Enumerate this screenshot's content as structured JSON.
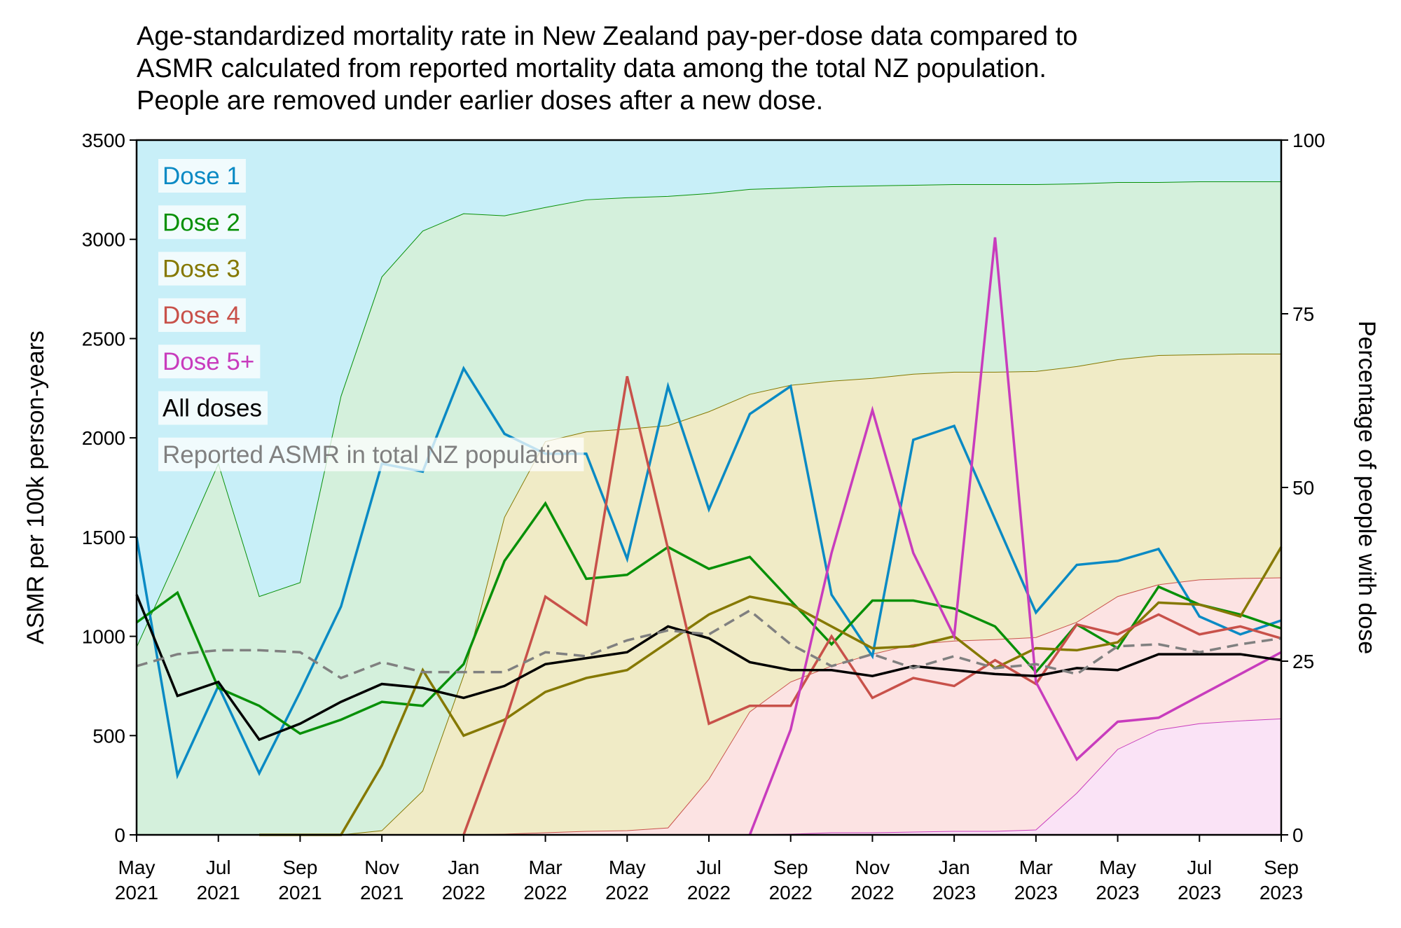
{
  "chart_data": {
    "type": "line",
    "title_lines": [
      "Age-standardized mortality rate in New Zealand pay-per-dose data compared to",
      "ASMR calculated from reported mortality data among the total NZ population.",
      "People are removed under earlier doses after a new dose."
    ],
    "ylabel": "ASMR per 100k person-years",
    "ylabel_right": "Percentage of people with dose",
    "ylim": [
      0,
      3500
    ],
    "ylim_right": [
      0,
      100
    ],
    "yticks": [
      "0",
      "500",
      "1000",
      "1500",
      "2000",
      "2500",
      "3000",
      "3500"
    ],
    "yticks_right": [
      "0",
      "25",
      "50",
      "75",
      "100"
    ],
    "x": [
      "2021-05",
      "2021-06",
      "2021-07",
      "2021-08",
      "2021-09",
      "2021-10",
      "2021-11",
      "2021-12",
      "2022-01",
      "2022-02",
      "2022-03",
      "2022-04",
      "2022-05",
      "2022-06",
      "2022-07",
      "2022-08",
      "2022-09",
      "2022-10",
      "2022-11",
      "2022-12",
      "2023-01",
      "2023-02",
      "2023-03",
      "2023-04",
      "2023-05",
      "2023-06",
      "2023-07",
      "2023-08",
      "2023-09"
    ],
    "xticks": [
      {
        "month": "May",
        "year": "2021"
      },
      {
        "month": "Jul",
        "year": "2021"
      },
      {
        "month": "Sep",
        "year": "2021"
      },
      {
        "month": "Nov",
        "year": "2021"
      },
      {
        "month": "Jan",
        "year": "2022"
      },
      {
        "month": "Mar",
        "year": "2022"
      },
      {
        "month": "May",
        "year": "2022"
      },
      {
        "month": "Jul",
        "year": "2022"
      },
      {
        "month": "Sep",
        "year": "2022"
      },
      {
        "month": "Nov",
        "year": "2022"
      },
      {
        "month": "Jan",
        "year": "2023"
      },
      {
        "month": "Mar",
        "year": "2023"
      },
      {
        "month": "May",
        "year": "2023"
      },
      {
        "month": "Jul",
        "year": "2023"
      },
      {
        "month": "Sep",
        "year": "2023"
      }
    ],
    "series": [
      {
        "name": "Dose 1",
        "color": "#0a8ac4",
        "values": [
          1500,
          300,
          750,
          310,
          720,
          1150,
          1870,
          1830,
          2350,
          2020,
          1920,
          1920,
          1390,
          2260,
          1640,
          2120,
          2260,
          1210,
          900,
          1990,
          2060,
          1590,
          1120,
          1360,
          1380,
          1440,
          1100,
          1010,
          1080
        ]
      },
      {
        "name": "Dose 2",
        "color": "#089008",
        "values": [
          1070,
          1220,
          740,
          650,
          510,
          580,
          670,
          650,
          860,
          1380,
          1670,
          1290,
          1310,
          1450,
          1340,
          1400,
          1180,
          960,
          1180,
          1180,
          1140,
          1050,
          820,
          1060,
          940,
          1250,
          1160,
          1110,
          1040
        ]
      },
      {
        "name": "Dose 3",
        "color": "#857800",
        "values": [
          null,
          null,
          null,
          0,
          0,
          0,
          350,
          830,
          500,
          580,
          720,
          790,
          830,
          970,
          1110,
          1200,
          1160,
          1050,
          940,
          950,
          1000,
          840,
          940,
          930,
          970,
          1170,
          1160,
          1100,
          1450
        ]
      },
      {
        "name": "Dose 4",
        "color": "#c8514a",
        "values": [
          null,
          null,
          null,
          null,
          null,
          null,
          null,
          null,
          0,
          560,
          1200,
          1060,
          2310,
          1440,
          560,
          650,
          650,
          1000,
          690,
          790,
          750,
          880,
          760,
          1060,
          1010,
          1110,
          1010,
          1050,
          990
        ]
      },
      {
        "name": "Dose 5+",
        "color": "#c83cbd",
        "values": [
          null,
          null,
          null,
          null,
          null,
          null,
          null,
          null,
          null,
          null,
          null,
          null,
          null,
          null,
          null,
          0,
          530,
          1420,
          2140,
          1420,
          1000,
          3010,
          770,
          380,
          570,
          590,
          700,
          810,
          920
        ]
      },
      {
        "name": "All doses",
        "color": "#000000",
        "values": [
          1210,
          700,
          770,
          480,
          560,
          670,
          760,
          740,
          690,
          750,
          860,
          890,
          920,
          1050,
          990,
          870,
          830,
          830,
          800,
          850,
          830,
          810,
          800,
          840,
          830,
          910,
          910,
          910,
          880
        ]
      },
      {
        "name": "Reported ASMR in total NZ population",
        "color": "#808080",
        "dashed": true,
        "values": [
          850,
          910,
          930,
          930,
          920,
          790,
          870,
          820,
          820,
          820,
          920,
          900,
          980,
          1030,
          1010,
          1130,
          960,
          850,
          910,
          840,
          900,
          840,
          860,
          810,
          950,
          960,
          920,
          960,
          990
        ]
      }
    ],
    "area_series_percent": [
      {
        "name": "Dose 1",
        "fill": "#c8eff8",
        "edge": "#c8eff8",
        "values": [
          100,
          100,
          100,
          100,
          100,
          100,
          100,
          100,
          100,
          100,
          100,
          100,
          100,
          100,
          100,
          100,
          100,
          100,
          100,
          100,
          100,
          100,
          100,
          100,
          100,
          100,
          100,
          100,
          100
        ]
      },
      {
        "name": "Dose 2",
        "fill": "#d4f0dc",
        "edge": "#089008",
        "values": [
          27,
          40,
          53.4,
          34.3,
          36.3,
          63.1,
          80.3,
          86.9,
          89.4,
          89.1,
          90.3,
          91.4,
          91.7,
          91.9,
          92.3,
          92.9,
          93.1,
          93.3,
          93.4,
          93.5,
          93.6,
          93.6,
          93.6,
          93.7,
          93.9,
          93.9,
          94,
          94,
          94
        ]
      },
      {
        "name": "Dose 3",
        "fill": "#f0ebc6",
        "edge": "#857800",
        "values": [
          null,
          null,
          null,
          0,
          0,
          0,
          0.6,
          6.3,
          22.9,
          45.7,
          56.6,
          58,
          58.4,
          58.9,
          60.9,
          63.4,
          64.7,
          65.3,
          65.7,
          66.3,
          66.6,
          66.6,
          66.7,
          67.4,
          68.4,
          69,
          69.1,
          69.2,
          69.2
        ]
      },
      {
        "name": "Dose 4",
        "fill": "#fce3e3",
        "edge": "#c8514a",
        "values": [
          null,
          null,
          null,
          null,
          null,
          null,
          null,
          null,
          0,
          0.1,
          0.3,
          0.5,
          0.6,
          1,
          8,
          17.7,
          22,
          24.3,
          26,
          27.4,
          27.9,
          28.1,
          28.4,
          30.6,
          34.3,
          36,
          36.7,
          36.9,
          37
        ]
      },
      {
        "name": "Dose 5+",
        "fill": "#fae3f6",
        "edge": "#c83cbd",
        "values": [
          null,
          null,
          null,
          null,
          null,
          null,
          null,
          null,
          null,
          null,
          null,
          null,
          null,
          null,
          null,
          0,
          0.1,
          0.3,
          0.3,
          0.4,
          0.5,
          0.5,
          0.7,
          6,
          12.3,
          15.1,
          16,
          16.4,
          16.7
        ]
      }
    ],
    "legend": "top-left",
    "grid": false
  }
}
